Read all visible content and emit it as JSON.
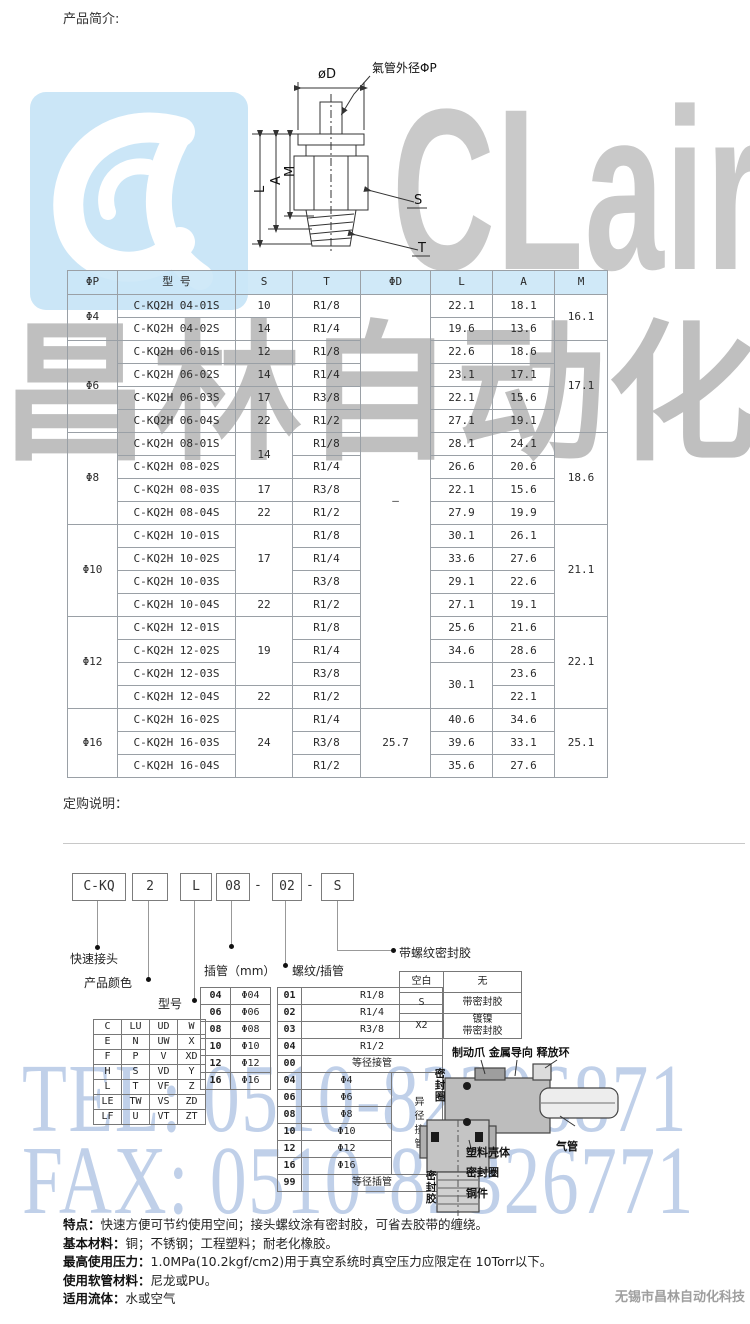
{
  "page": {
    "intro_heading": "产品简介:",
    "order_heading": "定购说明：",
    "footer_company": "无锡市昌林自动化科技"
  },
  "colors": {
    "header_blue": "#cbe7f7",
    "border_gray": "#9aa0a6",
    "logo_blue": "#cbe6f7",
    "watermark_gray": "#c9c9c9",
    "watermark_blue": "#8fb3dc"
  },
  "diagram": {
    "dim_d": "øD",
    "tube_od": "氣管外径ΦP",
    "dim_l": "L",
    "dim_a": "A",
    "dim_m": "M",
    "label_s": "S",
    "label_t": "T"
  },
  "spec_table": {
    "headers": [
      "ΦP",
      "型  号",
      "S",
      "T",
      "ΦD",
      "L",
      "A",
      "M"
    ],
    "rows": [
      [
        {
          "t": "Φ4",
          "rs": 2
        },
        {
          "t": "C-KQ2H 04-01S"
        },
        {
          "t": "10"
        },
        {
          "t": "R1/8"
        },
        {
          "t": "–",
          "rs": 18
        },
        {
          "t": "22.1"
        },
        {
          "t": "18.1"
        },
        {
          "t": "16.1",
          "rs": 2
        }
      ],
      [
        {
          "t": "C-KQ2H 04-02S"
        },
        {
          "t": "14"
        },
        {
          "t": "R1/4"
        },
        {
          "t": "19.6"
        },
        {
          "t": "13.6"
        }
      ],
      [
        {
          "t": "Φ6",
          "rs": 4
        },
        {
          "t": "C-KQ2H 06-01S"
        },
        {
          "t": "12"
        },
        {
          "t": "R1/8"
        },
        {
          "t": "22.6"
        },
        {
          "t": "18.6"
        },
        {
          "t": "17.1",
          "rs": 4
        }
      ],
      [
        {
          "t": "C-KQ2H 06-02S"
        },
        {
          "t": "14"
        },
        {
          "t": "R1/4"
        },
        {
          "t": "23.1"
        },
        {
          "t": "17.1"
        }
      ],
      [
        {
          "t": "C-KQ2H 06-03S"
        },
        {
          "t": "17"
        },
        {
          "t": "R3/8"
        },
        {
          "t": "22.1"
        },
        {
          "t": "15.6"
        }
      ],
      [
        {
          "t": "C-KQ2H 06-04S"
        },
        {
          "t": "22"
        },
        {
          "t": "R1/2"
        },
        {
          "t": "27.1"
        },
        {
          "t": "19.1"
        }
      ],
      [
        {
          "t": "Φ8",
          "rs": 4
        },
        {
          "t": "C-KQ2H 08-01S"
        },
        {
          "t": "14",
          "rs": 2
        },
        {
          "t": "R1/8"
        },
        {
          "t": "28.1"
        },
        {
          "t": "24.1"
        },
        {
          "t": "18.6",
          "rs": 4
        }
      ],
      [
        {
          "t": "C-KQ2H 08-02S"
        },
        {
          "t": "R1/4"
        },
        {
          "t": "26.6"
        },
        {
          "t": "20.6"
        }
      ],
      [
        {
          "t": "C-KQ2H 08-03S"
        },
        {
          "t": "17"
        },
        {
          "t": "R3/8"
        },
        {
          "t": "22.1"
        },
        {
          "t": "15.6"
        }
      ],
      [
        {
          "t": "C-KQ2H 08-04S"
        },
        {
          "t": "22"
        },
        {
          "t": "R1/2"
        },
        {
          "t": "27.9"
        },
        {
          "t": "19.9"
        }
      ],
      [
        {
          "t": "Φ10",
          "rs": 4
        },
        {
          "t": "C-KQ2H 10-01S"
        },
        {
          "t": "17",
          "rs": 3
        },
        {
          "t": "R1/8"
        },
        {
          "t": "30.1"
        },
        {
          "t": "26.1"
        },
        {
          "t": "21.1",
          "rs": 4
        }
      ],
      [
        {
          "t": "C-KQ2H 10-02S"
        },
        {
          "t": "R1/4"
        },
        {
          "t": "33.6"
        },
        {
          "t": "27.6"
        }
      ],
      [
        {
          "t": "C-KQ2H 10-03S"
        },
        {
          "t": "R3/8"
        },
        {
          "t": "29.1"
        },
        {
          "t": "22.6"
        }
      ],
      [
        {
          "t": "C-KQ2H 10-04S"
        },
        {
          "t": "22"
        },
        {
          "t": "R1/2"
        },
        {
          "t": "27.1"
        },
        {
          "t": "19.1"
        }
      ],
      [
        {
          "t": "Φ12",
          "rs": 4
        },
        {
          "t": "C-KQ2H 12-01S"
        },
        {
          "t": "19",
          "rs": 3
        },
        {
          "t": "R1/8"
        },
        {
          "t": "25.6"
        },
        {
          "t": "21.6"
        },
        {
          "t": "22.1",
          "rs": 4
        }
      ],
      [
        {
          "t": "C-KQ2H 12-02S"
        },
        {
          "t": "R1/4"
        },
        {
          "t": "34.6"
        },
        {
          "t": "28.6"
        }
      ],
      [
        {
          "t": "C-KQ2H 12-03S"
        },
        {
          "t": "R3/8"
        },
        {
          "t": "30.1",
          "rs": 2
        },
        {
          "t": "23.6"
        }
      ],
      [
        {
          "t": "C-KQ2H 12-04S"
        },
        {
          "t": "22"
        },
        {
          "t": "R1/2"
        },
        {
          "t": "22.1"
        }
      ],
      [
        {
          "t": "Φ16",
          "rs": 3
        },
        {
          "t": "C-KQ2H 16-02S"
        },
        {
          "t": "24",
          "rs": 3
        },
        {
          "t": "R1/4"
        },
        {
          "t": "25.7",
          "rs": 3
        },
        {
          "t": "40.6"
        },
        {
          "t": "34.6"
        },
        {
          "t": "25.1",
          "rs": 3
        }
      ],
      [
        {
          "t": "C-KQ2H 16-03S"
        },
        {
          "t": "R3/8"
        },
        {
          "t": "39.6"
        },
        {
          "t": "33.1"
        }
      ],
      [
        {
          "t": "C-KQ2H 16-04S"
        },
        {
          "t": "R1/2"
        },
        {
          "t": "35.6"
        },
        {
          "t": "27.6"
        }
      ]
    ]
  },
  "order_code": {
    "parts": [
      "C-KQ",
      "2",
      "L",
      "08",
      "-",
      "02",
      "-",
      "S"
    ]
  },
  "legend": {
    "quick_coupler": "快速接头",
    "product_color": "产品颜色",
    "model": "型号",
    "tube_mm": "插管（mm）",
    "thread_tube": "螺纹/插管",
    "thread_sealant": "带螺纹密封胶"
  },
  "model_table": {
    "rows": [
      [
        "C",
        "LU",
        "UD",
        "W"
      ],
      [
        "E",
        "N",
        "UW",
        "X"
      ],
      [
        "F",
        "P",
        "V",
        "XD"
      ],
      [
        "H",
        "S",
        "VD",
        "Y"
      ],
      [
        "L",
        "T",
        "VF",
        "Z"
      ],
      [
        "LE",
        "TW",
        "VS",
        "ZD"
      ],
      [
        "LF",
        "U",
        "VT",
        "ZT"
      ]
    ]
  },
  "tube_table": {
    "rows": [
      [
        "04",
        "Φ04"
      ],
      [
        "06",
        "Φ06"
      ],
      [
        "08",
        "Φ08"
      ],
      [
        "10",
        "Φ10"
      ],
      [
        "12",
        "Φ12"
      ],
      [
        "16",
        "Φ16"
      ]
    ]
  },
  "thread_table": {
    "rows": [
      [
        {
          "t": "01"
        },
        {
          "t": "R1/8",
          "cs": 2
        }
      ],
      [
        {
          "t": "02"
        },
        {
          "t": "R1/4",
          "cs": 2
        }
      ],
      [
        {
          "t": "03"
        },
        {
          "t": "R3/8",
          "cs": 2
        }
      ],
      [
        {
          "t": "04"
        },
        {
          "t": "R1/2",
          "cs": 2
        }
      ],
      [
        {
          "t": "00"
        },
        {
          "t": "等径接管",
          "cs": 2
        }
      ],
      [
        {
          "t": "04"
        },
        {
          "t": "Φ4"
        },
        {
          "t": "异径接管",
          "rs": 6,
          "cls": "vert"
        }
      ],
      [
        {
          "t": "06"
        },
        {
          "t": "Φ6"
        }
      ],
      [
        {
          "t": "08"
        },
        {
          "t": "Φ8"
        }
      ],
      [
        {
          "t": "10"
        },
        {
          "t": "Φ10"
        }
      ],
      [
        {
          "t": "12"
        },
        {
          "t": "Φ12"
        }
      ],
      [
        {
          "t": "16"
        },
        {
          "t": "Φ16"
        }
      ],
      [
        {
          "t": "99"
        },
        {
          "t": "等径插管",
          "cs": 2
        }
      ]
    ]
  },
  "sealant_table": {
    "rows": [
      [
        "空白",
        "无"
      ],
      [
        "S",
        "带密封胶"
      ],
      [
        "X2",
        "镀镍\n带密封胶"
      ]
    ]
  },
  "cutaway": {
    "top_label": "制动爪 金属导向 释放环",
    "seal_ring_left": "密封圈",
    "air_tube": "气管",
    "plastic_shell": "塑料壳体",
    "seal_ring": "密封圈",
    "copper_part": "铜件",
    "sealant": "密封胶"
  },
  "specs": [
    {
      "label": "特点：",
      "text": "快速方便可节约使用空间；接头螺纹涂有密封胶，可省去胶带的缠绕。"
    },
    {
      "label": "基本材料：",
      "text": "铜；不锈钢；工程塑料；耐老化橡胶。"
    },
    {
      "label": "最高使用压力：",
      "text": "1.0MPa(10.2kgf/cm2)用于真空系统时真空压力应限定在 10Torr以下。"
    },
    {
      "label": "使用软管材料：",
      "text": "尼龙或PU。"
    },
    {
      "label": "适用流体：",
      "text": "水或空气"
    }
  ],
  "watermark": {
    "logo_text": "CLair",
    "company_cn": "昌林自动化",
    "tel": "TEL: 0510-82306871",
    "fax": "FAX: 0510-82326771"
  }
}
